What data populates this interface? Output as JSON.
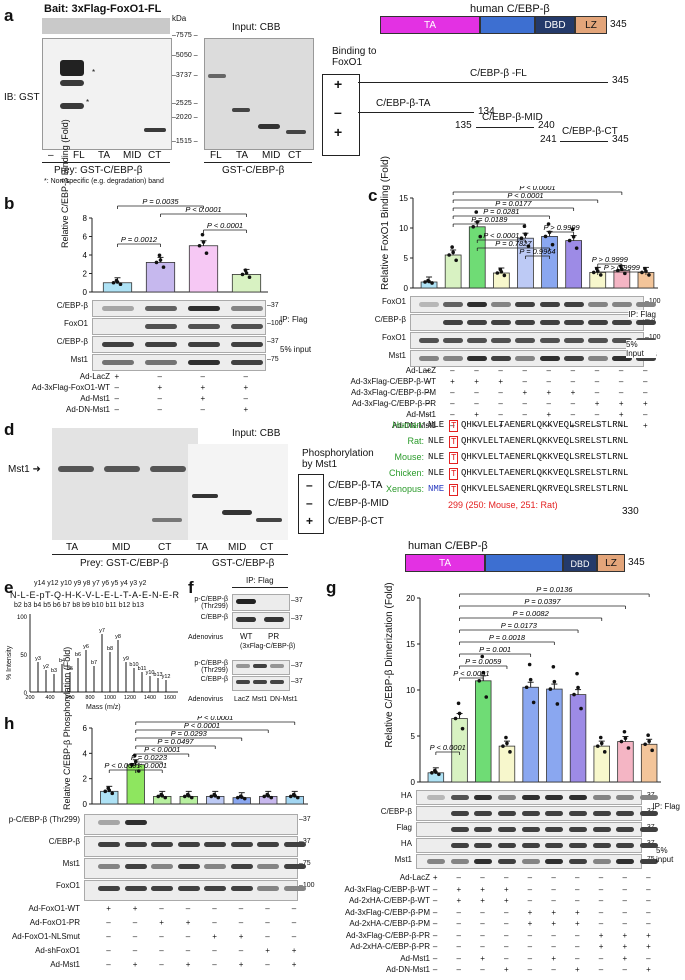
{
  "panel_a": {
    "label": "a",
    "bait": "Bait: 3xFlag-FoxO1-FL",
    "kda": "kDa",
    "ib": "IB: GST",
    "input_cbb": "Input: CBB",
    "markers_left": [
      "75",
      "50",
      "37",
      "25",
      "20",
      "15"
    ],
    "markers_right": [
      "75",
      "50",
      "37",
      "25",
      "20",
      "15"
    ],
    "lanes_prey": [
      "–",
      "FL",
      "TA",
      "MID",
      "CT"
    ],
    "lanes_cbb": [
      "FL",
      "TA",
      "MID",
      "CT"
    ],
    "prey_label": "Prey: GST-C/EBP-β",
    "cbb_label": "GST-C/EBP-β",
    "footnote": "*: Non-specific (e.g. degradation) band",
    "protein_title": "human C/EBP-β",
    "domains": [
      "TA",
      "DBD",
      "LZ"
    ],
    "length": "345",
    "binding_title": "Binding to FoxO1",
    "binding_signs": [
      "+",
      "–",
      "+"
    ],
    "constructs": [
      "C/EBP-β -FL",
      "C/EBP-β-TA",
      "C/EBP-β-MID",
      "C/EBP-β-CT"
    ],
    "construct_ends": [
      "345",
      "134",
      "135",
      "240",
      "241",
      "345"
    ]
  },
  "panel_b": {
    "label": "b",
    "ylabel": "Relative C/EBP-β Binding (Fold)",
    "yticks": [
      "0",
      "2",
      "4",
      "6",
      "8"
    ],
    "pvalues": [
      "P = 0.0012",
      "P < 0.0001",
      "P = 0.0035",
      "P < 0.0001"
    ],
    "blots": [
      "C/EBP-β",
      "FoxO1",
      "C/EBP-β",
      "Mst1"
    ],
    "markers": [
      "37",
      "100",
      "37",
      "75"
    ],
    "ip": "IP: Flag",
    "input": "5% input",
    "conditions": [
      "Ad-LacZ",
      "Ad-3xFlag-FoxO1-WT",
      "Ad-Mst1",
      "Ad-DN-Mst1"
    ],
    "signs": [
      [
        "+",
        "–",
        "–",
        "–"
      ],
      [
        "–",
        "+",
        "+",
        "+"
      ],
      [
        "–",
        "–",
        "+",
        "–"
      ],
      [
        "–",
        "–",
        "–",
        "+"
      ]
    ]
  },
  "chart_data": [
    {
      "type": "bar",
      "panel": "b",
      "ylabel": "Relative C/EBP-β Binding (Fold)",
      "ylim": [
        0,
        8
      ],
      "categories": [
        "1",
        "2",
        "3",
        "4"
      ],
      "values": [
        1.0,
        3.2,
        5.0,
        1.9
      ],
      "colors": [
        "#aee2f5",
        "#c6b8ee",
        "#f6c8f4",
        "#d8f2c2"
      ]
    },
    {
      "type": "bar",
      "panel": "c",
      "ylabel": "Relative FoxO1 Binding (Fold)",
      "ylim": [
        0,
        15
      ],
      "categories": [
        "1",
        "2",
        "3",
        "4",
        "5",
        "6",
        "7",
        "8",
        "9",
        "10"
      ],
      "values": [
        1.0,
        5.5,
        10.2,
        2.5,
        8.3,
        8.6,
        7.9,
        2.6,
        2.9,
        2.6
      ],
      "colors": [
        "#aee2f5",
        "#d8f2c2",
        "#6fdc75",
        "#f7f7cc",
        "#bdcaf5",
        "#8aa7f0",
        "#9d8be6",
        "#f7f7cc",
        "#f4b5c4",
        "#f3c59a"
      ]
    },
    {
      "type": "bar",
      "panel": "g",
      "ylabel": "Relative C/EBP-β Dimerization (Fold)",
      "ylim": [
        0,
        20
      ],
      "categories": [
        "1",
        "2",
        "3",
        "4",
        "5",
        "6",
        "7",
        "8",
        "9",
        "10"
      ],
      "values": [
        1.0,
        6.9,
        11.0,
        3.9,
        10.3,
        10.1,
        9.5,
        3.9,
        4.4,
        4.1
      ],
      "colors": [
        "#aee2f5",
        "#d8f2c2",
        "#6fdc75",
        "#f7f7cc",
        "#8aa7f0",
        "#8aa7f0",
        "#9d8be6",
        "#f7f7cc",
        "#f4b5c4",
        "#f3c59a"
      ]
    },
    {
      "type": "bar",
      "panel": "h",
      "ylabel": "Relative C/EBP-β Phosphorylation (Fold)",
      "ylim": [
        0,
        6
      ],
      "categories": [
        "1",
        "2",
        "3",
        "4",
        "5",
        "6",
        "7",
        "8"
      ],
      "values": [
        1.0,
        3.1,
        0.6,
        0.6,
        0.6,
        0.5,
        0.6,
        0.6
      ],
      "colors": [
        "#aee2f5",
        "#8ee65f",
        "#b8f0a0",
        "#b8f0a0",
        "#bdcaf5",
        "#8aa7f0",
        "#c8b8ee",
        "#a3d6f2"
      ]
    }
  ],
  "panel_c": {
    "label": "c",
    "ylabel": "Relative FoxO1 Binding (Fold)",
    "yticks": [
      "0",
      "5",
      "10",
      "15"
    ],
    "pvalues": [
      "P < 0.0001",
      "P < 0.0001",
      "P = 0.0177",
      "P = 0.0281",
      "P = 0.0189",
      "P > 0.9999",
      "P < 0.0001",
      "P = 0.7827",
      "P = 0.9964",
      "P > 0.9999",
      "P > 0.9999"
    ],
    "blots": [
      "FoxO1",
      "C/EBP-β",
      "FoxO1",
      "Mst1"
    ],
    "markers": [
      "100",
      "37",
      "100",
      "75"
    ],
    "ip": "IP: Flag",
    "input": "5% Input",
    "conditions": [
      "Ad-LacZ",
      "Ad-3xFlag-C/EBP-β-WT",
      "Ad-3xFlag-C/EBP-β-PM",
      "Ad-3xFlag-C/EBP-β-PR",
      "Ad-Mst1",
      "Ad-DN-Mst1"
    ],
    "signs": [
      [
        "+",
        "–",
        "–",
        "–",
        "–",
        "–",
        "–",
        "–",
        "–",
        "–"
      ],
      [
        "–",
        "+",
        "+",
        "+",
        "–",
        "–",
        "–",
        "–",
        "–",
        "–"
      ],
      [
        "–",
        "–",
        "–",
        "–",
        "+",
        "+",
        "+",
        "–",
        "–",
        "–"
      ],
      [
        "–",
        "–",
        "–",
        "–",
        "–",
        "–",
        "–",
        "+",
        "+",
        "+"
      ],
      [
        "–",
        "–",
        "+",
        "–",
        "–",
        "+",
        "–",
        "–",
        "+",
        "–"
      ],
      [
        "–",
        "–",
        "–",
        "+",
        "–",
        "–",
        "+",
        "–",
        "–",
        "+"
      ]
    ]
  },
  "panel_d": {
    "label": "d",
    "mst1": "Mst1",
    "lanes": [
      "TA",
      "MID",
      "CT"
    ],
    "prey": "Prey: GST-C/EBP-β",
    "input_cbb": "Input: CBB",
    "cbb_lanes": [
      "TA",
      "MID",
      "CT"
    ],
    "cbb_label": "GST-C/EBP-β",
    "phos_title": "Phosphorylation by Mst1",
    "phos_signs": [
      "–",
      "–",
      "+"
    ],
    "phos_names": [
      "C/EBP-β-TA",
      "C/EBP-β-MID",
      "C/EBP-β-CT"
    ],
    "species": [
      "Human:",
      "Rat:",
      "Mouse:",
      "Chicken:",
      "Xenopus:"
    ],
    "seq_prefix": [
      "NLE",
      "NLE",
      "NLE",
      "NLE",
      "NME"
    ],
    "seq_site": [
      "T",
      "T",
      "T",
      "T",
      "T"
    ],
    "seq_rest": [
      "QHKVLELTAENERLQKKVEQLSRELSTLRNL",
      "QHKVLELTAENERLQKKVEQLSRELSTLRNL",
      "QHKVLELTAENERLQKKVEQLSRELSTLRNL",
      "QHKVLELTAENERLQKKVEQLSRELSTLRNL",
      "QHKVLELSAENERLQKRVEQLSRELSTLRNL"
    ],
    "site_note": "299 (250: Mouse, 251: Rat)",
    "end": "330",
    "protein_title": "human C/EBP-β",
    "domains": [
      "TA",
      "DBD",
      "LZ"
    ],
    "length": "345"
  },
  "panel_e": {
    "label": "e",
    "peptide": "N-L-E-pT-Q-H-K-V-L-E-L-T-A-E-N-E-R",
    "yions": "y14 y12 y10 y9 y8 y7 y6 y5 y4 y3 y2",
    "bions": "b2 b3 b4 b5 b6 b7 b8 b9 b10 b11 b12 b13",
    "ylabel": "% Intensity",
    "xlabel": "Mass (m/z)",
    "yticks": [
      "0",
      "50",
      "100"
    ],
    "xticks": [
      "200",
      "400",
      "600",
      "800",
      "1000",
      "1200",
      "1400",
      "1600"
    ],
    "peaks": [
      "y3",
      "y2",
      "b3",
      "b4",
      "b5",
      "b6",
      "y6",
      "b7",
      "y7",
      "b8",
      "y8",
      "y9",
      "b10",
      "b11",
      "y10",
      "b13",
      "y12"
    ]
  },
  "panel_f": {
    "label": "f",
    "ip": "IP: Flag",
    "blots": [
      "p-C/EBP-β (Thr299)",
      "C/EBP-β"
    ],
    "markers": [
      "37",
      "37"
    ],
    "lanes": [
      "WT",
      "PR"
    ],
    "adenovirus": "Adenovirus",
    "construct": "(3xFlag-C/EBP-β)",
    "blots2": [
      "p-C/EBP-β (Thr299)",
      "C/EBP-β"
    ],
    "markers2": [
      "37",
      "37"
    ],
    "lanes2": [
      "LacZ",
      "Mst1",
      "DN-Mst1"
    ]
  },
  "panel_g": {
    "label": "g",
    "ylabel": "Relative C/EBP-β Dimerization (Fold)",
    "yticks": [
      "0",
      "5",
      "10",
      "15",
      "20"
    ],
    "pvalues": [
      "P = 0.0136",
      "P = 0.0397",
      "P = 0.0082",
      "P = 0.0173",
      "P = 0.0018",
      "P = 0.001",
      "P = 0.0059",
      "P < 0.0001",
      "P < 0.0001"
    ],
    "blots": [
      "HA",
      "C/EBP-β",
      "Flag",
      "HA",
      "Mst1"
    ],
    "markers": [
      "37",
      "37",
      "37",
      "37",
      "75"
    ],
    "ip": "IP: Flag",
    "input": "5% input",
    "conditions": [
      "Ad-LacZ",
      "Ad-3xFlag-C/EBP-β-WT",
      "Ad-2xHA-C/EBP-β-WT",
      "Ad-3xFlag-C/EBP-β-PM",
      "Ad-2xHA-C/EBP-β-PM",
      "Ad-3xFlag-C/EBP-β-PR",
      "Ad-2xHA-C/EBP-β-PR",
      "Ad-Mst1",
      "Ad-DN-Mst1"
    ],
    "signs": [
      [
        "+",
        "–",
        "–",
        "–",
        "–",
        "–",
        "–",
        "–",
        "–",
        "–"
      ],
      [
        "–",
        "+",
        "+",
        "+",
        "–",
        "–",
        "–",
        "–",
        "–",
        "–"
      ],
      [
        "–",
        "+",
        "+",
        "+",
        "–",
        "–",
        "–",
        "–",
        "–",
        "–"
      ],
      [
        "–",
        "–",
        "–",
        "–",
        "+",
        "+",
        "+",
        "–",
        "–",
        "–"
      ],
      [
        "–",
        "–",
        "–",
        "–",
        "+",
        "+",
        "+",
        "–",
        "–",
        "–"
      ],
      [
        "–",
        "–",
        "–",
        "–",
        "–",
        "–",
        "–",
        "+",
        "+",
        "+"
      ],
      [
        "–",
        "–",
        "–",
        "–",
        "–",
        "–",
        "–",
        "+",
        "+",
        "+"
      ],
      [
        "–",
        "–",
        "+",
        "–",
        "–",
        "+",
        "–",
        "–",
        "+",
        "–"
      ],
      [
        "–",
        "–",
        "–",
        "+",
        "–",
        "–",
        "+",
        "–",
        "–",
        "+"
      ]
    ]
  },
  "panel_h": {
    "label": "h",
    "ylabel": "Relative C/EBP-β Phosphorylation (Fold)",
    "yticks": [
      "0",
      "2",
      "4",
      "6"
    ],
    "pvalues": [
      "P < 0.0001",
      "P < 0.0001",
      "P = 0.0293",
      "P = 0.0497",
      "P < 0.0001",
      "P = 0.0223",
      "P < 0.0001",
      "P < 0.0001"
    ],
    "blots": [
      "p-C/EBP-β (Thr299)",
      "C/EBP-β",
      "Mst1",
      "FoxO1"
    ],
    "markers": [
      "37",
      "37",
      "75",
      "100"
    ],
    "conditions": [
      "Ad-FoxO1-WT",
      "Ad-FoxO1-PR",
      "Ad-FoxO1-NLSmut",
      "Ad-shFoxO1",
      "Ad-Mst1"
    ],
    "signs": [
      [
        "+",
        "+",
        "–",
        "–",
        "–",
        "–",
        "–",
        "–"
      ],
      [
        "–",
        "–",
        "+",
        "+",
        "–",
        "–",
        "–",
        "–"
      ],
      [
        "–",
        "–",
        "–",
        "–",
        "+",
        "+",
        "–",
        "–"
      ],
      [
        "–",
        "–",
        "–",
        "–",
        "–",
        "–",
        "+",
        "+"
      ],
      [
        "–",
        "+",
        "–",
        "+",
        "–",
        "+",
        "–",
        "+"
      ]
    ]
  }
}
